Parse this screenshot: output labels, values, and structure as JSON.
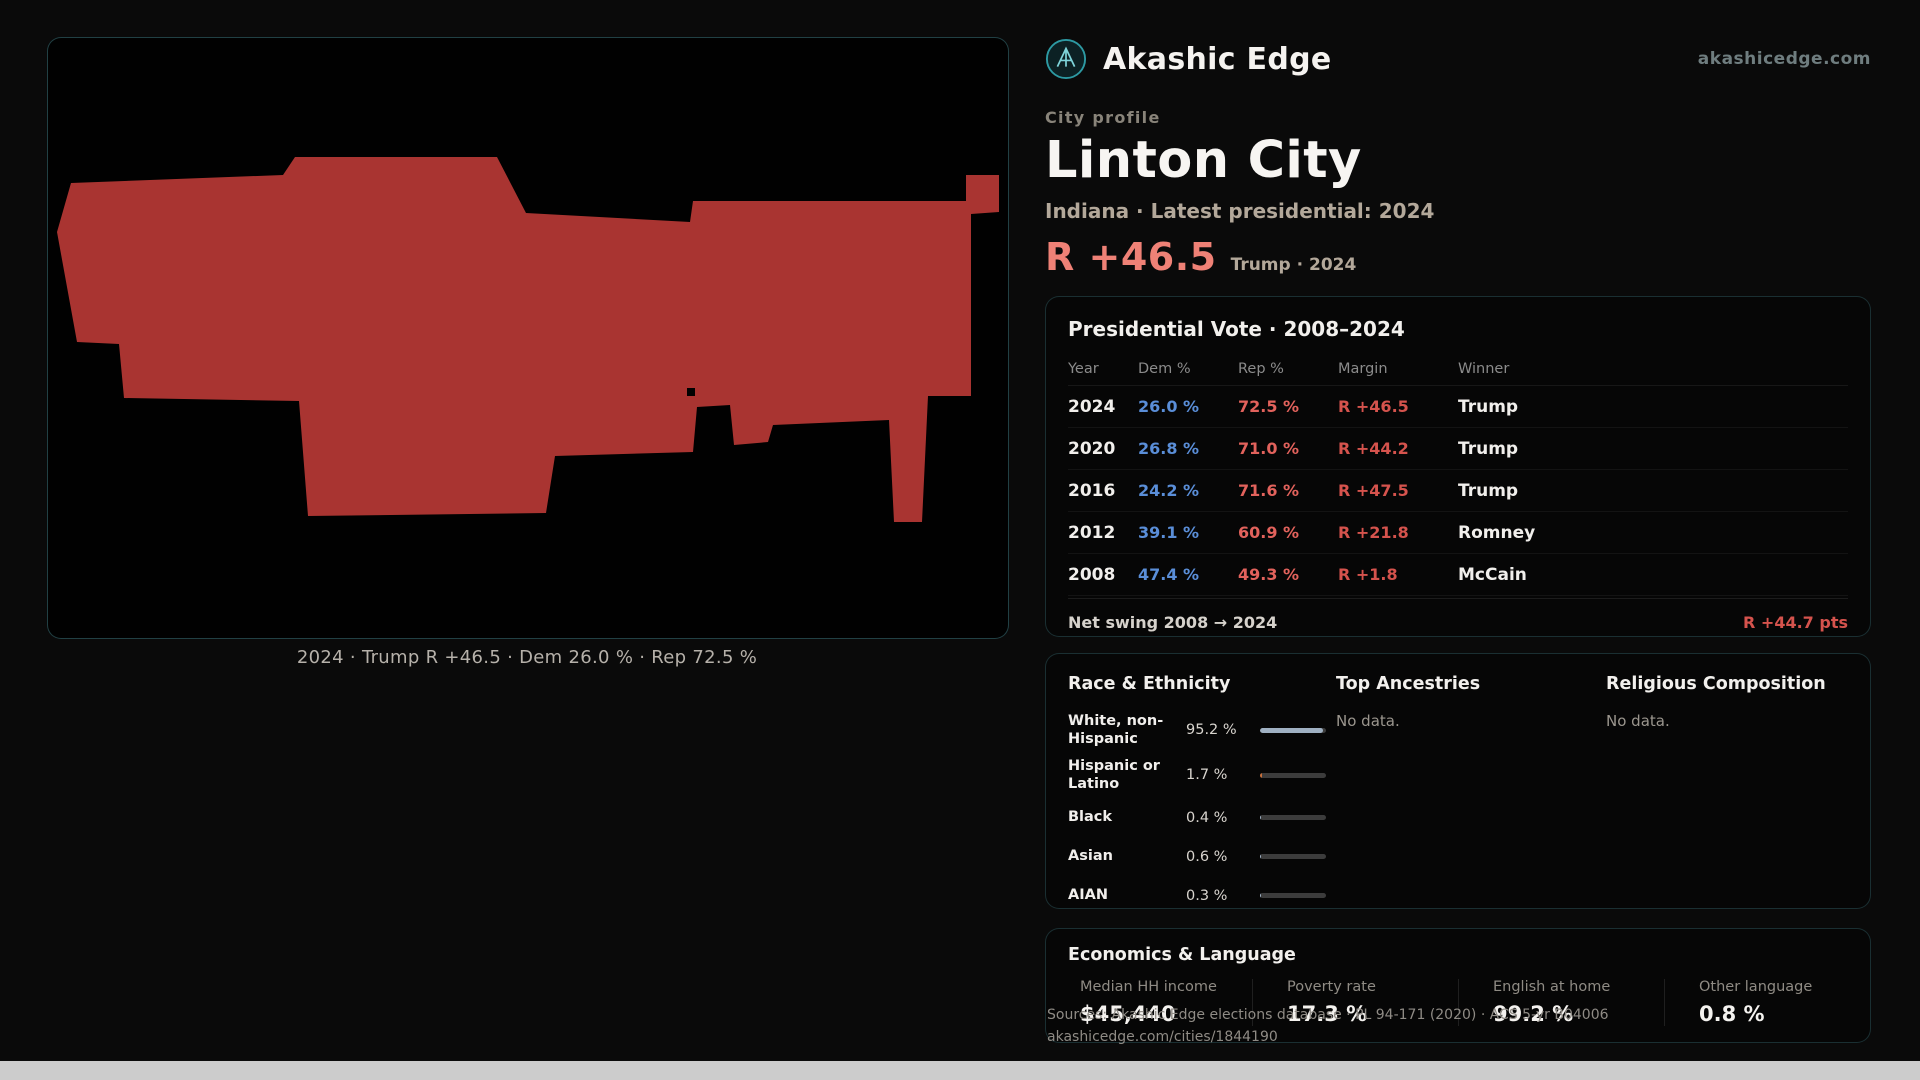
{
  "header": {
    "brand": "Akashic Edge",
    "website": "akashicedge.com"
  },
  "profile": {
    "eyebrow": "City profile",
    "city_name": "Linton City",
    "subtitle": "Indiana · Latest presidential: 2024",
    "margin_headline": "R +46.5",
    "margin_context": "Trump · 2024"
  },
  "map": {
    "caption": "2024 · Trump R +46.5 · Dem 26.0 % · Rep 72.5 %"
  },
  "presidential": {
    "title": "Presidential Vote · 2008–2024",
    "columns": {
      "year": "Year",
      "dem": "Dem %",
      "rep": "Rep %",
      "margin": "Margin",
      "winner": "Winner"
    },
    "rows": [
      {
        "year": "2024",
        "dem": "26.0 %",
        "rep": "72.5 %",
        "margin": "R +46.5",
        "winner": "Trump"
      },
      {
        "year": "2020",
        "dem": "26.8 %",
        "rep": "71.0 %",
        "margin": "R +44.2",
        "winner": "Trump"
      },
      {
        "year": "2016",
        "dem": "24.2 %",
        "rep": "71.6 %",
        "margin": "R +47.5",
        "winner": "Trump"
      },
      {
        "year": "2012",
        "dem": "39.1 %",
        "rep": "60.9 %",
        "margin": "R +21.8",
        "winner": "Romney"
      },
      {
        "year": "2008",
        "dem": "47.4 %",
        "rep": "49.3 %",
        "margin": "R +1.8",
        "winner": "McCain"
      }
    ],
    "footer_label": "Net swing 2008 → 2024",
    "footer_value": "R +44.7 pts"
  },
  "demographics": {
    "race": {
      "title": "Race & Ethnicity",
      "rows": [
        {
          "label": "White, non-Hispanic",
          "value": "95.2 %",
          "pct": 95.2,
          "color": "#9fb0c2"
        },
        {
          "label": "Hispanic or Latino",
          "value": "1.7 %",
          "pct": 1.7,
          "color": "#c8703c"
        },
        {
          "label": "Black",
          "value": "0.4 %",
          "pct": 0.4,
          "color": "#9fb0c2"
        },
        {
          "label": "Asian",
          "value": "0.6 %",
          "pct": 0.6,
          "color": "#9fb0c2"
        },
        {
          "label": "AIAN",
          "value": "0.3 %",
          "pct": 0.3,
          "color": "#9fb0c2"
        }
      ]
    },
    "ancestries": {
      "title": "Top Ancestries",
      "empty": "No data."
    },
    "religion": {
      "title": "Religious Composition",
      "empty": "No data."
    }
  },
  "economics": {
    "title": "Economics & Language",
    "stats": [
      {
        "label": "Median HH income",
        "value": "$45,440"
      },
      {
        "label": "Poverty rate",
        "value": "17.3 %"
      },
      {
        "label": "English at home",
        "value": "99.2 %"
      },
      {
        "label": "Other language",
        "value": "0.8 %"
      }
    ]
  },
  "footer": {
    "sources": "Sources: Akashic Edge elections database · PL 94-171 (2020) · ACS 5-yr B04006",
    "permalink": "akashicedge.com/cities/1844190"
  },
  "colors": {
    "dem": "#5a8ed8",
    "rep": "#e2625c",
    "margin": "#d5534d",
    "accent": "#ef8176",
    "teal": "#2d9aa3",
    "map_shape": "#a93431"
  }
}
